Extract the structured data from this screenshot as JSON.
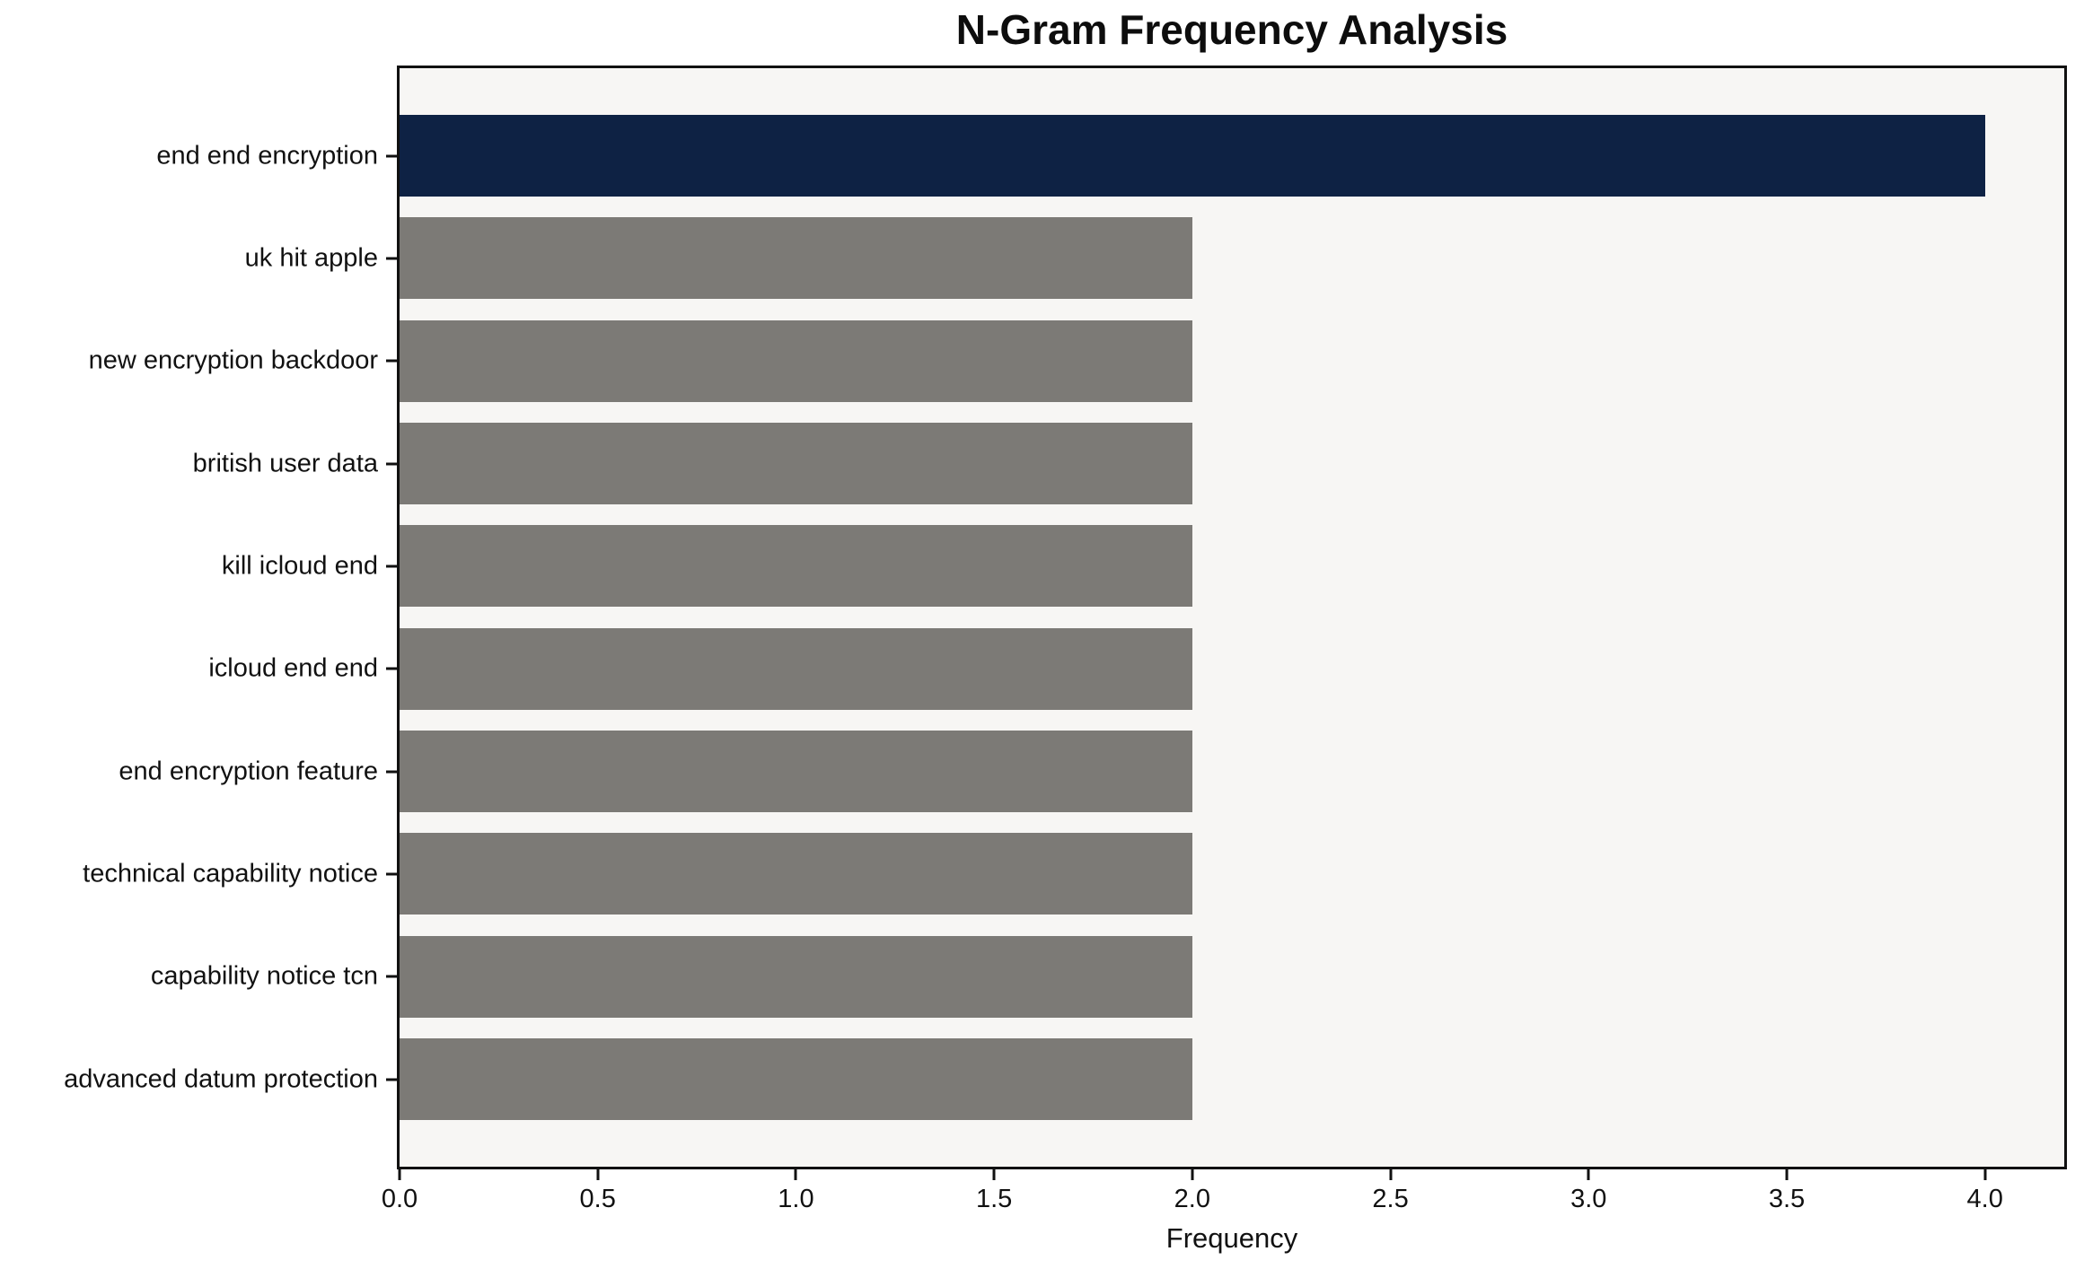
{
  "chart_data": {
    "type": "bar",
    "orientation": "horizontal",
    "title": "N-Gram Frequency Analysis",
    "xlabel": "Frequency",
    "ylabel": "",
    "categories": [
      "end end encryption",
      "uk hit apple",
      "new encryption backdoor",
      "british user data",
      "kill icloud end",
      "icloud end end",
      "end encryption feature",
      "technical capability notice",
      "capability notice tcn",
      "advanced datum protection"
    ],
    "values": [
      4,
      2,
      2,
      2,
      2,
      2,
      2,
      2,
      2,
      2
    ],
    "bar_colors": [
      "#0e2244",
      "#7c7a76",
      "#7c7a76",
      "#7c7a76",
      "#7c7a76",
      "#7c7a76",
      "#7c7a76",
      "#7c7a76",
      "#7c7a76",
      "#7c7a76"
    ],
    "highlight_color": "#0e2244",
    "base_color": "#7c7a76",
    "xlim": [
      0,
      4.2
    ],
    "xticks": [
      "0.0",
      "0.5",
      "1.0",
      "1.5",
      "2.0",
      "2.5",
      "3.0",
      "3.5",
      "4.0"
    ],
    "grid": false,
    "legend_position": "none",
    "plot_background": "#f7f6f4",
    "figure_background": "#ffffff",
    "spine_color": "#111111"
  }
}
